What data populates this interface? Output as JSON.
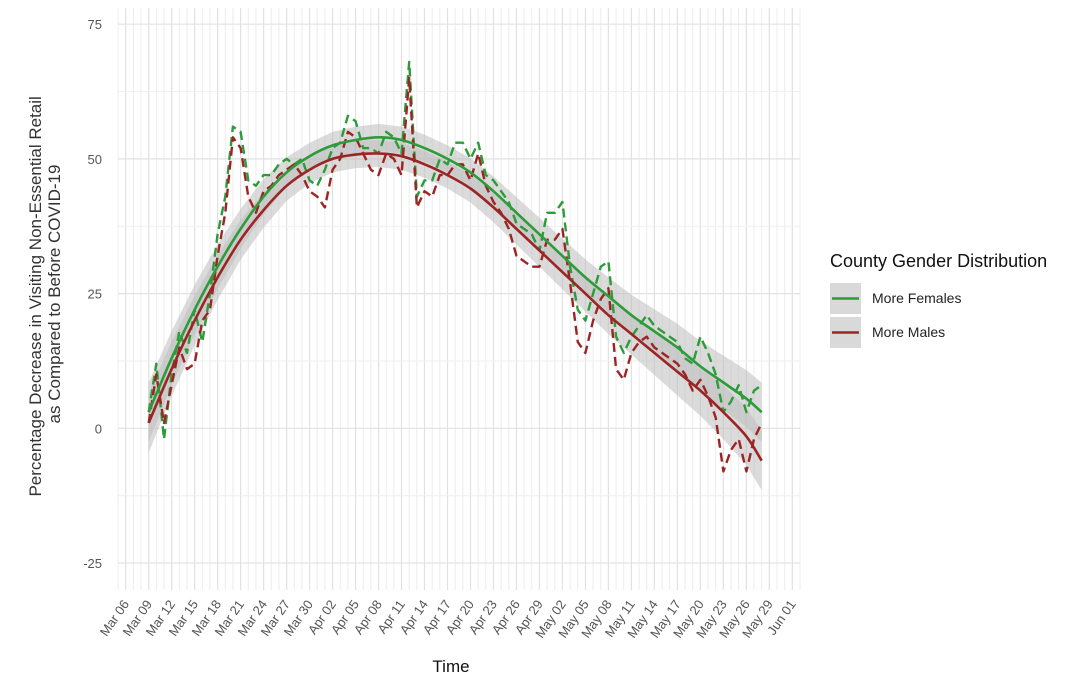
{
  "chart_data": {
    "type": "line",
    "xlabel": "Time",
    "ylabel_lines": [
      "Percentage Decrease in Visiting Non-Essential Retail",
      "as Compared to Before COVID-19"
    ],
    "ylim": [
      -30,
      78
    ],
    "xlim": [
      "2020-03-05",
      "2020-06-02"
    ],
    "y_ticks": [
      -25,
      0,
      25,
      50,
      75
    ],
    "x_ticks": [
      "2020-03-06",
      "2020-03-09",
      "2020-03-12",
      "2020-03-15",
      "2020-03-18",
      "2020-03-21",
      "2020-03-24",
      "2020-03-27",
      "2020-03-30",
      "2020-04-02",
      "2020-04-05",
      "2020-04-08",
      "2020-04-11",
      "2020-04-14",
      "2020-04-17",
      "2020-04-20",
      "2020-04-23",
      "2020-04-26",
      "2020-04-29",
      "2020-05-02",
      "2020-05-05",
      "2020-05-08",
      "2020-05-11",
      "2020-05-14",
      "2020-05-17",
      "2020-05-20",
      "2020-05-23",
      "2020-05-26",
      "2020-05-29",
      "2020-06-01"
    ],
    "x_tick_labels": [
      "Mar 06",
      "Mar 09",
      "Mar 12",
      "Mar 15",
      "Mar 18",
      "Mar 21",
      "Mar 24",
      "Mar 27",
      "Mar 30",
      "Apr 02",
      "Apr 05",
      "Apr 08",
      "Apr 11",
      "Apr 14",
      "Apr 17",
      "Apr 20",
      "Apr 23",
      "Apr 26",
      "Apr 29",
      "May 02",
      "May 05",
      "May 08",
      "May 11",
      "May 14",
      "May 17",
      "May 20",
      "May 23",
      "May 26",
      "May 29",
      "Jun 01"
    ],
    "grid": true,
    "legend": {
      "title": "County Gender Distribution",
      "position": "right"
    },
    "series": [
      {
        "name": "More Females",
        "color": "#2e9b3a",
        "dashed": [
          [
            "2020-03-09",
            3
          ],
          [
            "2020-03-10",
            12
          ],
          [
            "2020-03-11",
            -2
          ],
          [
            "2020-03-12",
            10
          ],
          [
            "2020-03-13",
            18
          ],
          [
            "2020-03-14",
            14
          ],
          [
            "2020-03-15",
            22
          ],
          [
            "2020-03-16",
            16
          ],
          [
            "2020-03-17",
            25
          ],
          [
            "2020-03-18",
            36
          ],
          [
            "2020-03-19",
            43
          ],
          [
            "2020-03-20",
            56
          ],
          [
            "2020-03-21",
            55
          ],
          [
            "2020-03-22",
            46
          ],
          [
            "2020-03-23",
            45
          ],
          [
            "2020-03-24",
            47
          ],
          [
            "2020-03-25",
            47
          ],
          [
            "2020-03-26",
            49
          ],
          [
            "2020-03-27",
            50
          ],
          [
            "2020-03-28",
            49
          ],
          [
            "2020-03-29",
            50
          ],
          [
            "2020-03-30",
            46
          ],
          [
            "2020-03-31",
            45
          ],
          [
            "2020-04-01",
            48
          ],
          [
            "2020-04-02",
            52
          ],
          [
            "2020-04-03",
            53
          ],
          [
            "2020-04-04",
            58
          ],
          [
            "2020-04-05",
            57
          ],
          [
            "2020-04-06",
            52
          ],
          [
            "2020-04-07",
            52
          ],
          [
            "2020-04-08",
            51
          ],
          [
            "2020-04-09",
            55
          ],
          [
            "2020-04-10",
            54
          ],
          [
            "2020-04-11",
            51
          ],
          [
            "2020-04-12",
            68
          ],
          [
            "2020-04-13",
            43
          ],
          [
            "2020-04-14",
            46
          ],
          [
            "2020-04-15",
            46
          ],
          [
            "2020-04-16",
            50
          ],
          [
            "2020-04-17",
            49
          ],
          [
            "2020-04-18",
            53
          ],
          [
            "2020-04-19",
            53
          ],
          [
            "2020-04-20",
            50
          ],
          [
            "2020-04-21",
            53
          ],
          [
            "2020-04-22",
            47
          ],
          [
            "2020-04-23",
            46
          ],
          [
            "2020-04-24",
            44
          ],
          [
            "2020-04-25",
            42
          ],
          [
            "2020-04-26",
            38
          ],
          [
            "2020-04-27",
            37
          ],
          [
            "2020-04-28",
            36
          ],
          [
            "2020-04-29",
            33
          ],
          [
            "2020-04-30",
            40
          ],
          [
            "2020-05-01",
            40
          ],
          [
            "2020-05-02",
            42
          ],
          [
            "2020-05-03",
            30
          ],
          [
            "2020-05-04",
            22
          ],
          [
            "2020-05-05",
            20
          ],
          [
            "2020-05-06",
            25
          ],
          [
            "2020-05-07",
            30
          ],
          [
            "2020-05-08",
            31
          ],
          [
            "2020-05-09",
            17
          ],
          [
            "2020-05-10",
            14
          ],
          [
            "2020-05-11",
            17
          ],
          [
            "2020-05-12",
            19
          ],
          [
            "2020-05-13",
            21
          ],
          [
            "2020-05-14",
            19
          ],
          [
            "2020-05-15",
            18
          ],
          [
            "2020-05-16",
            17
          ],
          [
            "2020-05-17",
            16
          ],
          [
            "2020-05-18",
            13
          ],
          [
            "2020-05-19",
            12
          ],
          [
            "2020-05-20",
            17
          ],
          [
            "2020-05-21",
            14
          ],
          [
            "2020-05-22",
            10
          ],
          [
            "2020-05-23",
            3
          ],
          [
            "2020-05-24",
            5
          ],
          [
            "2020-05-25",
            8
          ],
          [
            "2020-05-26",
            3
          ],
          [
            "2020-05-27",
            7
          ],
          [
            "2020-05-28",
            8
          ]
        ],
        "smooth": [
          [
            "2020-03-09",
            3
          ],
          [
            "2020-03-12",
            13
          ],
          [
            "2020-03-15",
            22
          ],
          [
            "2020-03-18",
            30
          ],
          [
            "2020-03-21",
            37
          ],
          [
            "2020-03-24",
            43
          ],
          [
            "2020-03-27",
            47.5
          ],
          [
            "2020-03-30",
            50.5
          ],
          [
            "2020-04-02",
            52.5
          ],
          [
            "2020-04-05",
            53.5
          ],
          [
            "2020-04-08",
            54
          ],
          [
            "2020-04-11",
            53.5
          ],
          [
            "2020-04-14",
            52
          ],
          [
            "2020-04-17",
            50
          ],
          [
            "2020-04-20",
            47.5
          ],
          [
            "2020-04-23",
            44
          ],
          [
            "2020-04-26",
            40
          ],
          [
            "2020-04-29",
            36
          ],
          [
            "2020-05-02",
            32
          ],
          [
            "2020-05-05",
            28
          ],
          [
            "2020-05-08",
            24.5
          ],
          [
            "2020-05-11",
            21
          ],
          [
            "2020-05-14",
            18
          ],
          [
            "2020-05-17",
            15
          ],
          [
            "2020-05-20",
            11.5
          ],
          [
            "2020-05-23",
            8.5
          ],
          [
            "2020-05-26",
            5.5
          ],
          [
            "2020-05-28",
            3
          ]
        ]
      },
      {
        "name": "More Males",
        "color": "#9b2424",
        "dashed": [
          [
            "2020-03-09",
            1
          ],
          [
            "2020-03-10",
            10
          ],
          [
            "2020-03-11",
            1
          ],
          [
            "2020-03-12",
            8
          ],
          [
            "2020-03-13",
            15
          ],
          [
            "2020-03-14",
            11
          ],
          [
            "2020-03-15",
            12
          ],
          [
            "2020-03-16",
            20
          ],
          [
            "2020-03-17",
            22
          ],
          [
            "2020-03-18",
            32
          ],
          [
            "2020-03-19",
            40
          ],
          [
            "2020-03-20",
            54
          ],
          [
            "2020-03-21",
            52
          ],
          [
            "2020-03-22",
            43
          ],
          [
            "2020-03-23",
            40
          ],
          [
            "2020-03-24",
            44
          ],
          [
            "2020-03-25",
            45
          ],
          [
            "2020-03-26",
            47
          ],
          [
            "2020-03-27",
            48
          ],
          [
            "2020-03-28",
            49
          ],
          [
            "2020-03-29",
            47
          ],
          [
            "2020-03-30",
            44
          ],
          [
            "2020-03-31",
            43
          ],
          [
            "2020-04-01",
            41
          ],
          [
            "2020-04-02",
            48
          ],
          [
            "2020-04-03",
            50
          ],
          [
            "2020-04-04",
            55
          ],
          [
            "2020-04-05",
            54
          ],
          [
            "2020-04-06",
            51
          ],
          [
            "2020-04-07",
            48
          ],
          [
            "2020-04-08",
            47
          ],
          [
            "2020-04-09",
            51
          ],
          [
            "2020-04-10",
            50
          ],
          [
            "2020-04-11",
            47
          ],
          [
            "2020-04-12",
            65
          ],
          [
            "2020-04-13",
            41
          ],
          [
            "2020-04-14",
            44
          ],
          [
            "2020-04-15",
            43
          ],
          [
            "2020-04-16",
            47
          ],
          [
            "2020-04-17",
            47
          ],
          [
            "2020-04-18",
            49
          ],
          [
            "2020-04-19",
            49
          ],
          [
            "2020-04-20",
            46
          ],
          [
            "2020-04-21",
            51
          ],
          [
            "2020-04-22",
            45
          ],
          [
            "2020-04-23",
            42
          ],
          [
            "2020-04-24",
            40
          ],
          [
            "2020-04-25",
            37
          ],
          [
            "2020-04-26",
            32
          ],
          [
            "2020-04-27",
            31
          ],
          [
            "2020-04-28",
            30
          ],
          [
            "2020-04-29",
            30
          ],
          [
            "2020-04-30",
            35
          ],
          [
            "2020-05-01",
            35
          ],
          [
            "2020-05-02",
            37
          ],
          [
            "2020-05-03",
            27
          ],
          [
            "2020-05-04",
            16
          ],
          [
            "2020-05-05",
            14
          ],
          [
            "2020-05-06",
            20
          ],
          [
            "2020-05-07",
            24
          ],
          [
            "2020-05-08",
            26
          ],
          [
            "2020-05-09",
            11
          ],
          [
            "2020-05-10",
            9
          ],
          [
            "2020-05-11",
            14
          ],
          [
            "2020-05-12",
            16
          ],
          [
            "2020-05-13",
            17
          ],
          [
            "2020-05-14",
            15
          ],
          [
            "2020-05-15",
            14
          ],
          [
            "2020-05-16",
            13
          ],
          [
            "2020-05-17",
            12
          ],
          [
            "2020-05-18",
            10
          ],
          [
            "2020-05-19",
            7
          ],
          [
            "2020-05-20",
            9
          ],
          [
            "2020-05-21",
            6
          ],
          [
            "2020-05-22",
            2
          ],
          [
            "2020-05-23",
            -8
          ],
          [
            "2020-05-24",
            -4
          ],
          [
            "2020-05-25",
            -2
          ],
          [
            "2020-05-26",
            -8
          ],
          [
            "2020-05-27",
            -2
          ],
          [
            "2020-05-28",
            1
          ]
        ],
        "smooth": [
          [
            "2020-03-09",
            1
          ],
          [
            "2020-03-12",
            11
          ],
          [
            "2020-03-15",
            20
          ],
          [
            "2020-03-18",
            28
          ],
          [
            "2020-03-21",
            35
          ],
          [
            "2020-03-24",
            40.5
          ],
          [
            "2020-03-27",
            45
          ],
          [
            "2020-03-30",
            48
          ],
          [
            "2020-04-02",
            50
          ],
          [
            "2020-04-05",
            50.8
          ],
          [
            "2020-04-08",
            51
          ],
          [
            "2020-04-11",
            50.5
          ],
          [
            "2020-04-14",
            49
          ],
          [
            "2020-04-17",
            47
          ],
          [
            "2020-04-20",
            44.5
          ],
          [
            "2020-04-23",
            41
          ],
          [
            "2020-04-26",
            37
          ],
          [
            "2020-04-29",
            33
          ],
          [
            "2020-05-02",
            29
          ],
          [
            "2020-05-05",
            25
          ],
          [
            "2020-05-08",
            21
          ],
          [
            "2020-05-11",
            17.5
          ],
          [
            "2020-05-14",
            14
          ],
          [
            "2020-05-17",
            10.5
          ],
          [
            "2020-05-20",
            7
          ],
          [
            "2020-05-23",
            3
          ],
          [
            "2020-05-26",
            -1.5
          ],
          [
            "2020-05-28",
            -6
          ]
        ]
      }
    ],
    "ci_band_color": "#bdbdbd",
    "ci_halfwidth_days": [
      [
        0,
        5.5
      ],
      [
        20,
        2.5
      ],
      [
        40,
        2.5
      ],
      [
        60,
        3.5
      ],
      [
        80,
        5.5
      ]
    ]
  }
}
